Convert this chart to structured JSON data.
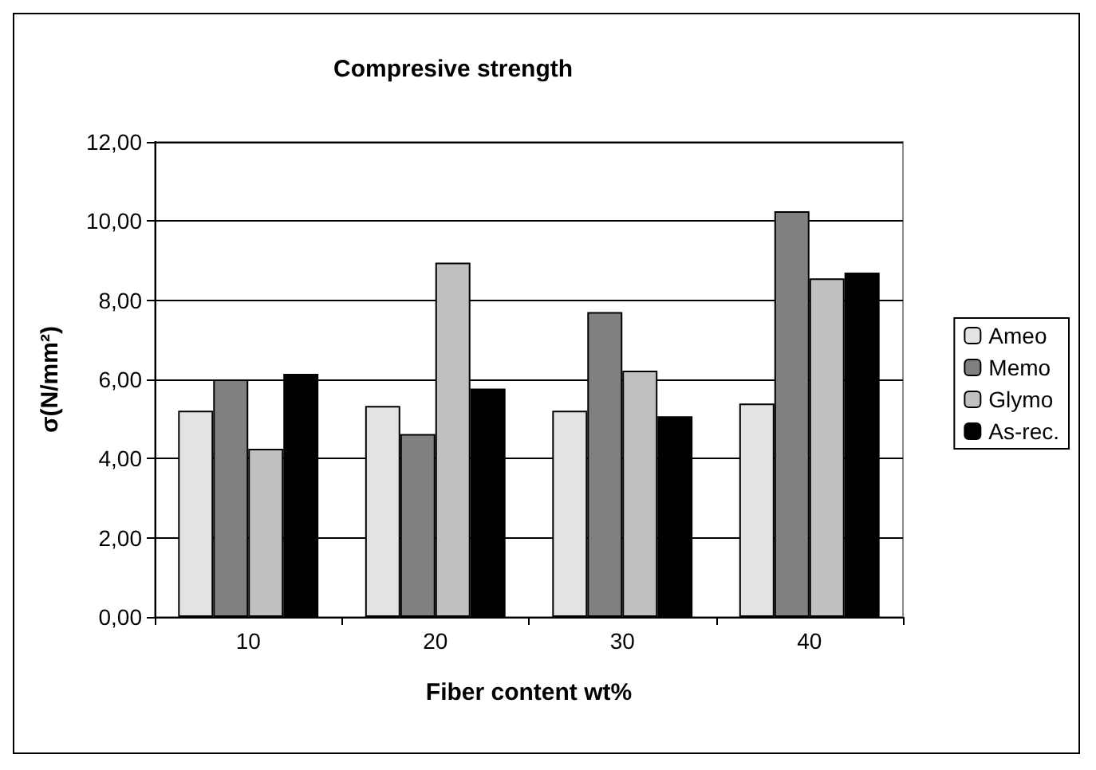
{
  "chart_data": {
    "type": "bar",
    "title": "Compresive strength",
    "xlabel": "Fiber content wt%",
    "ylabel": "σ(N/mm²)",
    "categories": [
      "10",
      "20",
      "30",
      "40"
    ],
    "series": [
      {
        "name": "Ameo",
        "color": "#e3e3e3",
        "values": [
          5.21,
          5.33,
          5.21,
          5.39
        ]
      },
      {
        "name": "Memo",
        "color": "#808080",
        "values": [
          6.0,
          4.62,
          7.7,
          10.25
        ]
      },
      {
        "name": "Glymo",
        "color": "#c0c0c0",
        "values": [
          4.25,
          8.95,
          6.22,
          8.55
        ]
      },
      {
        "name": "As-rec.",
        "color": "#000000",
        "values": [
          6.14,
          5.77,
          5.07,
          8.7
        ]
      }
    ],
    "ylim": [
      0,
      12
    ],
    "yticks": [
      {
        "value": 0,
        "label": "0,00"
      },
      {
        "value": 2,
        "label": "2,00"
      },
      {
        "value": 4,
        "label": "4,00"
      },
      {
        "value": 6,
        "label": "6,00"
      },
      {
        "value": 8,
        "label": "8,00"
      },
      {
        "value": 10,
        "label": "10,00"
      },
      {
        "value": 12,
        "label": "12,00"
      }
    ],
    "grid": "y",
    "legend": "right"
  }
}
